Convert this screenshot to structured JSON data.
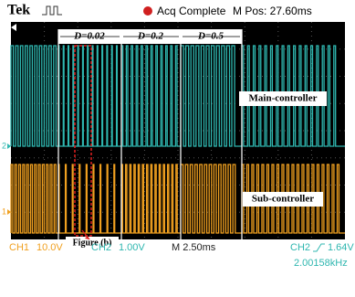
{
  "header": {
    "brand": "Tek",
    "status": "Acq Complete",
    "position": "M Pos: 27.60ms"
  },
  "annotations": {
    "duty": [
      "D=0.02",
      "D=0.2",
      "D=0.5"
    ],
    "main": "Main-controller",
    "sub": "Sub-controller",
    "figure": "Figure (b)"
  },
  "markers": {
    "ch2": "2",
    "ch1": "1"
  },
  "footer": {
    "ch1": "CH1",
    "ch1_scale": "10.0V",
    "ch2": "CH2",
    "ch2_scale": "1.00V",
    "timebase": "M 2.50ms",
    "trigger_source": "CH2",
    "trigger_level": "1.64V",
    "frequency": "2.00158kHz"
  }
}
